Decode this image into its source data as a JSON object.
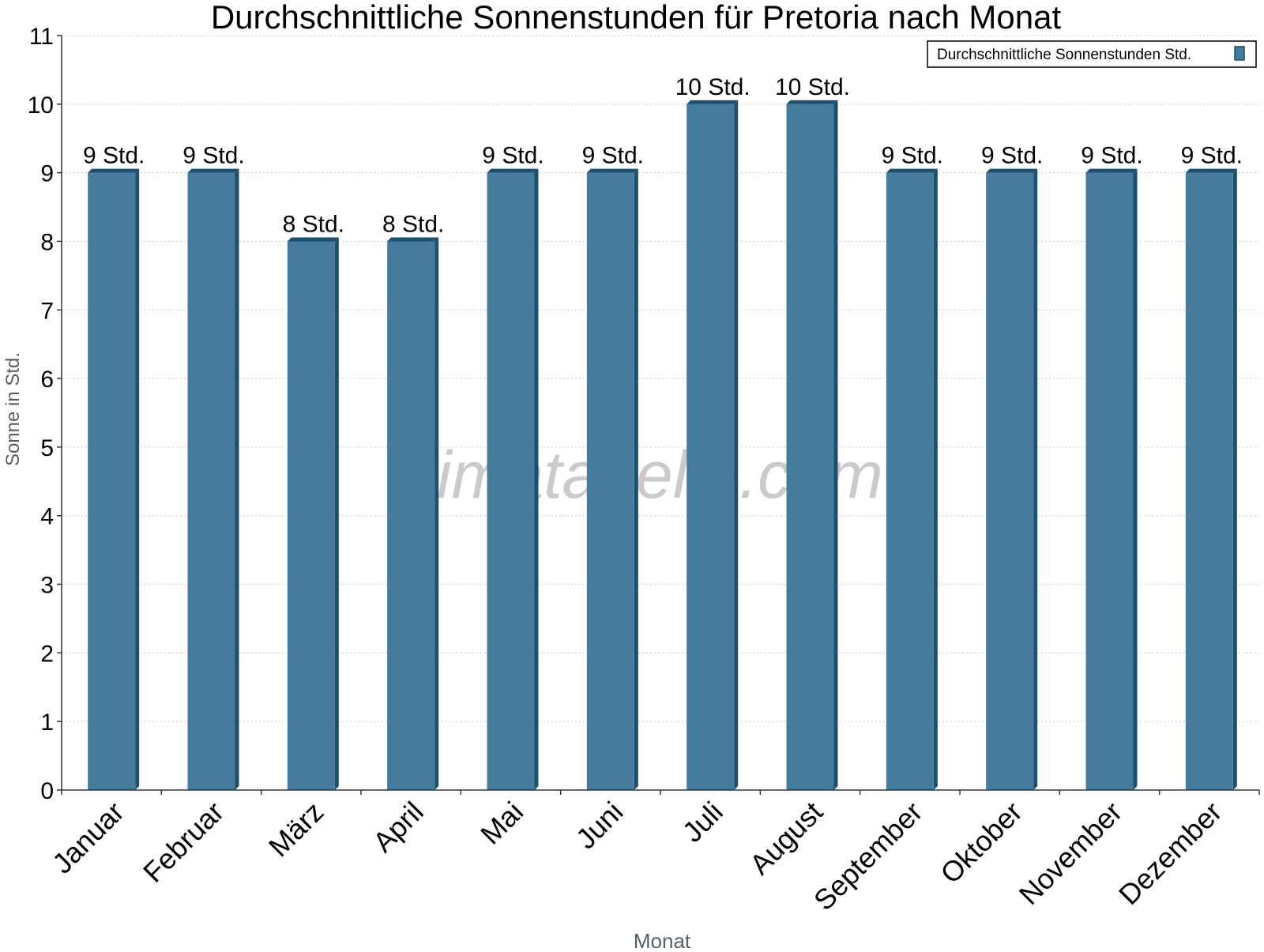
{
  "chart_data": {
    "type": "bar",
    "title": "Durchschnittliche Sonnenstunden für Pretoria nach Monat",
    "xlabel": "Monat",
    "ylabel": "Sonne in Std.",
    "ylim": [
      0,
      11
    ],
    "yticks": [
      0,
      1,
      2,
      3,
      4,
      5,
      6,
      7,
      8,
      9,
      10,
      11
    ],
    "grid": true,
    "legend_position": "top-right",
    "categories": [
      "Januar",
      "Februar",
      "März",
      "April",
      "Mai",
      "Juni",
      "Juli",
      "August",
      "September",
      "Oktober",
      "November",
      "Dezember"
    ],
    "series": [
      {
        "name": "Durchschnittliche Sonnenstunden Std.",
        "values": [
          9,
          9,
          8,
          8,
          9,
          9,
          10,
          10,
          9,
          9,
          9,
          9
        ],
        "data_labels": [
          "9 Std.",
          "9 Std.",
          "8 Std.",
          "8 Std.",
          "9 Std.",
          "9 Std.",
          "10 Std.",
          "10 Std.",
          "9 Std.",
          "9 Std.",
          "9 Std.",
          "9 Std."
        ],
        "color": "#457b9d",
        "side_color": "#1d4f6e"
      }
    ]
  },
  "watermark": "klimatabelle.com"
}
